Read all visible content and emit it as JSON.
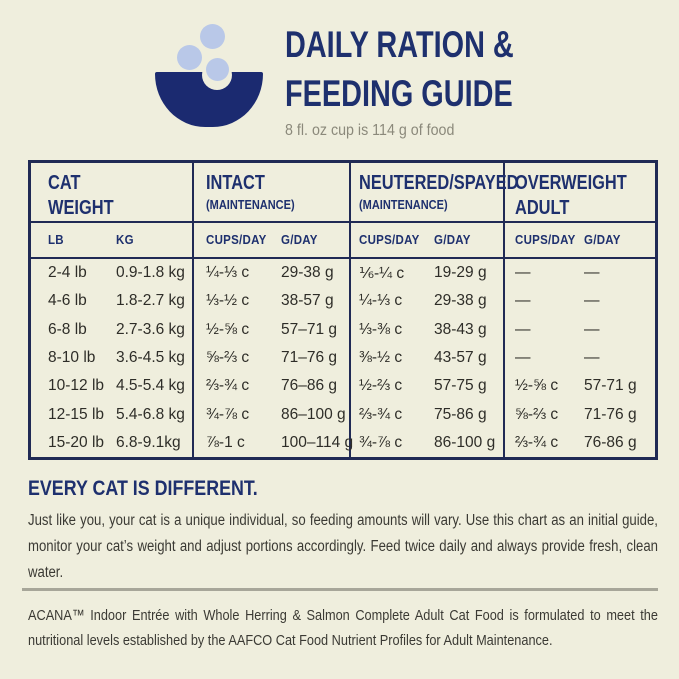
{
  "colors": {
    "background": "#efeedd",
    "navy": "#1e306e",
    "table_border": "#202a55",
    "body_text": "#3b3a34",
    "subtitle_gray": "#8b897b",
    "kibble_blue": "#b9c8e8",
    "divider_gray": "#a7a699"
  },
  "header": {
    "icon": "bowl-with-kibble",
    "title_line1": "DAILY RATION &",
    "title_line2": "FEEDING GUIDE",
    "subtitle": "8 fl. oz cup is 114 g of food"
  },
  "table": {
    "groups": [
      {
        "title_lines": [
          "CAT",
          "WEIGHT"
        ],
        "subtitle": "",
        "columns": [
          "LB",
          "KG"
        ]
      },
      {
        "title_lines": [
          "INTACT"
        ],
        "subtitle": "(MAINTENANCE)",
        "columns": [
          "CUPS/DAY",
          "G/DAY"
        ]
      },
      {
        "title_lines": [
          "NEUTERED/SPAYED"
        ],
        "subtitle": "(MAINTENANCE)",
        "columns": [
          "CUPS/DAY",
          "G/DAY"
        ]
      },
      {
        "title_lines": [
          "OVERWEIGHT",
          "ADULT"
        ],
        "subtitle": "",
        "columns": [
          "CUPS/DAY",
          "G/DAY"
        ]
      }
    ],
    "rows": [
      [
        "2-4 lb",
        "0.9-1.8 kg",
        "¼-⅓ c",
        "29-38 g",
        "⅙-¼ c",
        "19-29 g",
        "—",
        "—"
      ],
      [
        "4-6 lb",
        "1.8-2.7 kg",
        "⅓-½ c",
        "38-57 g",
        "¼-⅓ c",
        "29-38 g",
        "—",
        "—"
      ],
      [
        "6-8 lb",
        "2.7-3.6 kg",
        "½-⅝ c",
        "57–71 g",
        "⅓-⅜ c",
        "38-43 g",
        "—",
        "—"
      ],
      [
        "8-10 lb",
        "3.6-4.5 kg",
        "⅝-⅔ c",
        "71–76 g",
        "⅜-½ c",
        "43-57 g",
        "—",
        "—"
      ],
      [
        "10-12 lb",
        "4.5-5.4 kg",
        "⅔-¾ c",
        "76–86 g",
        "½-⅔ c",
        "57-75 g",
        "½-⅝ c",
        "57-71 g"
      ],
      [
        "12-15 lb",
        "5.4-6.8 kg",
        "¾-⅞ c",
        "86–100 g",
        "⅔-¾ c",
        "75-86 g",
        "⅝-⅔ c",
        "71-76 g"
      ],
      [
        "15-20 lb",
        "6.8-9.1kg",
        "⅞-1 c",
        "100–114 g",
        "¾-⅞ c",
        "86-100 g",
        "⅔-¾ c",
        "76-86 g"
      ]
    ]
  },
  "body": {
    "heading": "EVERY CAT IS DIFFERENT.",
    "paragraph": "Just like you, your cat is a unique individual, so feeding amounts will vary. Use this chart as an initial guide, monitor your cat’s weight and adjust portions accordingly. Feed twice daily and always provide fresh, clean water."
  },
  "footer": {
    "note": "ACANA™ Indoor Entrée with Whole Herring & Salmon Complete Adult Cat Food is formulated to meet the nutritional levels established by the AAFCO Cat Food Nutrient Profiles for Adult Maintenance."
  }
}
